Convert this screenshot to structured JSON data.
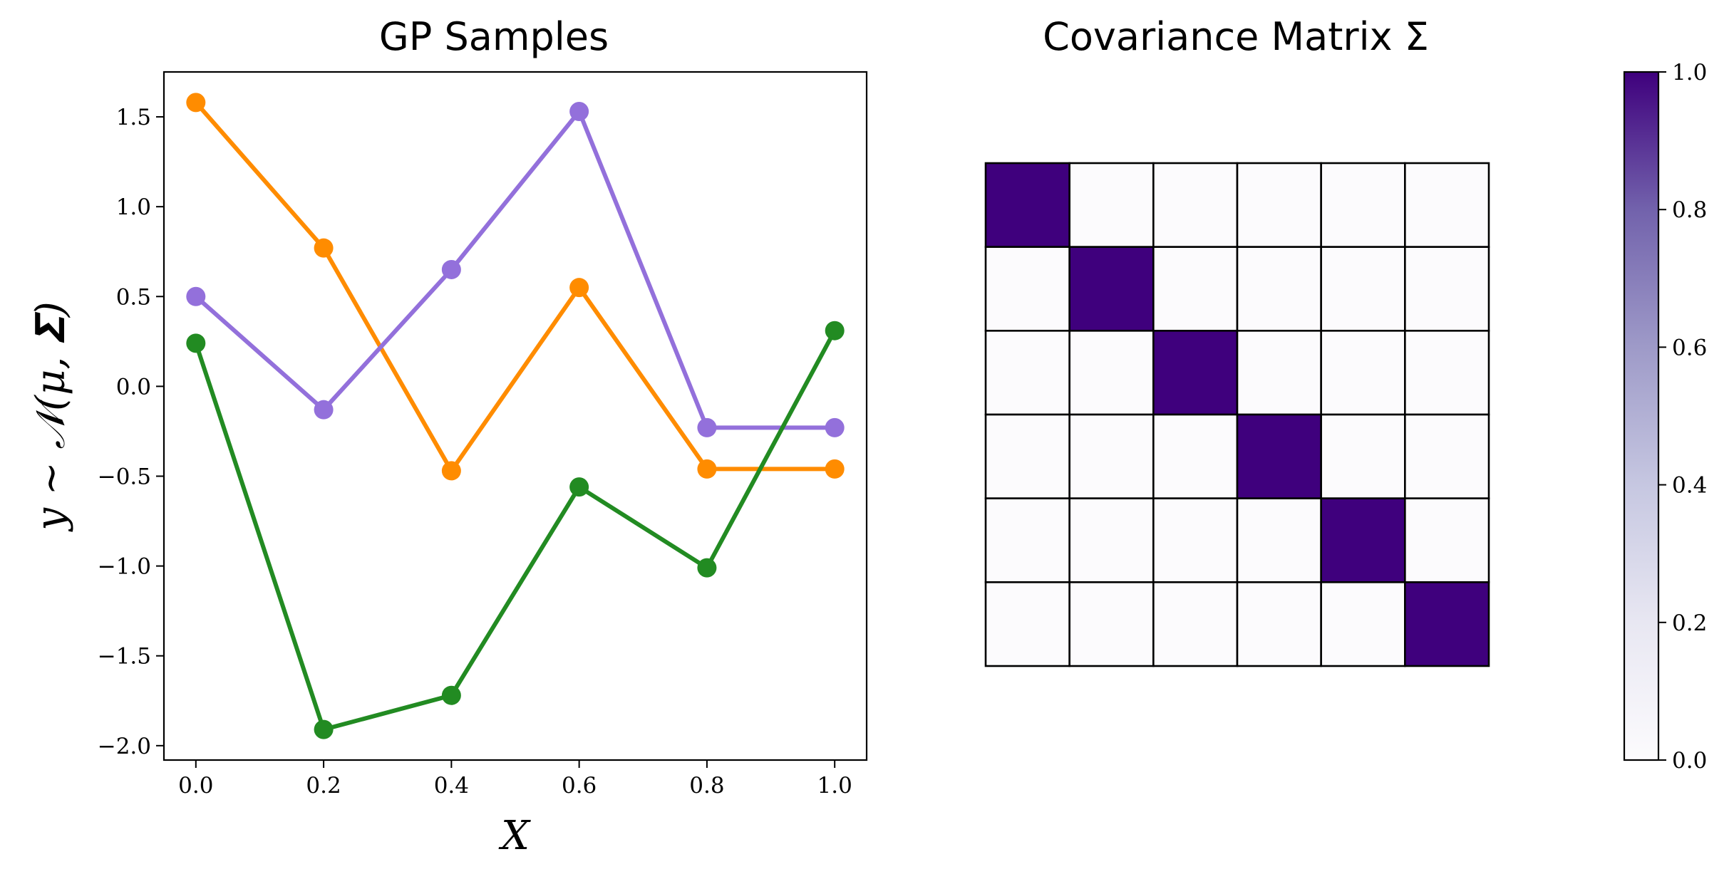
{
  "chart_data": [
    {
      "type": "line",
      "title": "GP Samples",
      "xlabel": "X",
      "ylabel": "y ∼ 𝒩(μ, 𝚺)",
      "xlim": [
        -0.05,
        1.05
      ],
      "ylim": [
        -2.08,
        1.75
      ],
      "xticks": [
        0.0,
        0.2,
        0.4,
        0.6,
        0.8,
        1.0
      ],
      "xtick_labels": [
        "0.0",
        "0.2",
        "0.4",
        "0.6",
        "0.8",
        "1.0"
      ],
      "yticks": [
        -2.0,
        -1.5,
        -1.0,
        -0.5,
        0.0,
        0.5,
        1.0,
        1.5
      ],
      "ytick_labels": [
        "−2.0",
        "−1.5",
        "−1.0",
        "−0.5",
        "0.0",
        "0.5",
        "1.0",
        "1.5"
      ],
      "grid": false,
      "x": [
        0.0,
        0.2,
        0.4,
        0.6,
        0.8,
        1.0
      ],
      "series": [
        {
          "color": "#ff8c00",
          "values": [
            1.58,
            0.77,
            -0.47,
            0.55,
            -0.46,
            -0.46
          ]
        },
        {
          "color": "#9370db",
          "values": [
            0.5,
            -0.13,
            0.65,
            1.53,
            -0.23,
            -0.23
          ]
        },
        {
          "color": "#228b22",
          "values": [
            0.24,
            -1.91,
            -1.72,
            -0.56,
            -1.01,
            0.31
          ]
        }
      ]
    },
    {
      "type": "heatmap",
      "title": "Covariance Matrix Σ",
      "colormap": "Purples",
      "vmin": 0.0,
      "vmax": 1.0,
      "low_color": "#fcfbfd",
      "high_color": "#3f007d",
      "matrix": [
        [
          1,
          0,
          0,
          0,
          0,
          0
        ],
        [
          0,
          1,
          0,
          0,
          0,
          0
        ],
        [
          0,
          0,
          1,
          0,
          0,
          0
        ],
        [
          0,
          0,
          0,
          1,
          0,
          0
        ],
        [
          0,
          0,
          0,
          0,
          1,
          0
        ],
        [
          0,
          0,
          0,
          0,
          0,
          1
        ]
      ],
      "colorbar_ticks": [
        0.0,
        0.2,
        0.4,
        0.6,
        0.8,
        1.0
      ],
      "colorbar_tick_labels": [
        "0.0",
        "0.2",
        "0.4",
        "0.6",
        "0.8",
        "1.0"
      ]
    }
  ]
}
